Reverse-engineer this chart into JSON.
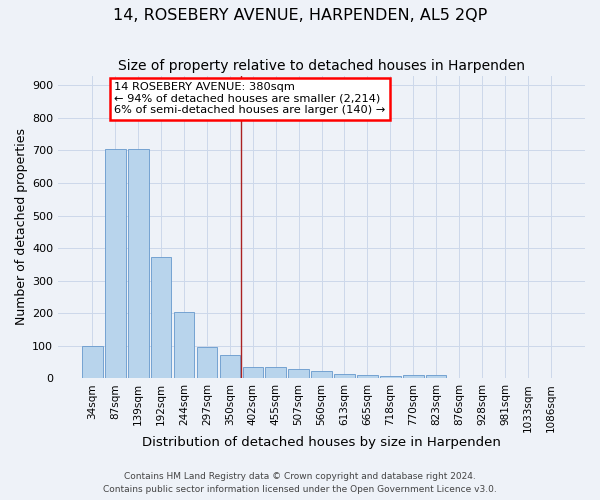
{
  "title": "14, ROSEBERY AVENUE, HARPENDEN, AL5 2QP",
  "subtitle": "Size of property relative to detached houses in Harpenden",
  "xlabel": "Distribution of detached houses by size in Harpenden",
  "ylabel": "Number of detached properties",
  "categories": [
    "34sqm",
    "87sqm",
    "139sqm",
    "192sqm",
    "244sqm",
    "297sqm",
    "350sqm",
    "402sqm",
    "455sqm",
    "507sqm",
    "560sqm",
    "613sqm",
    "665sqm",
    "718sqm",
    "770sqm",
    "823sqm",
    "876sqm",
    "928sqm",
    "981sqm",
    "1033sqm",
    "1086sqm"
  ],
  "values": [
    100,
    703,
    703,
    373,
    205,
    97,
    73,
    35,
    35,
    28,
    22,
    12,
    10,
    7,
    10,
    10,
    0,
    0,
    0,
    0,
    0
  ],
  "bar_color": "#b8d4ec",
  "bar_edge_color": "#6699cc",
  "grid_color": "#ccd8ea",
  "background_color": "#eef2f8",
  "annotation_lines": [
    "14 ROSEBERY AVENUE: 380sqm",
    "← 94% of detached houses are smaller (2,214)",
    "6% of semi-detached houses are larger (140) →"
  ],
  "vline_color": "#aa2222",
  "vline_x": 6.47,
  "ylim": [
    0,
    930
  ],
  "yticks": [
    0,
    100,
    200,
    300,
    400,
    500,
    600,
    700,
    800,
    900
  ],
  "footer_line1": "Contains HM Land Registry data © Crown copyright and database right 2024.",
  "footer_line2": "Contains public sector information licensed under the Open Government Licence v3.0."
}
